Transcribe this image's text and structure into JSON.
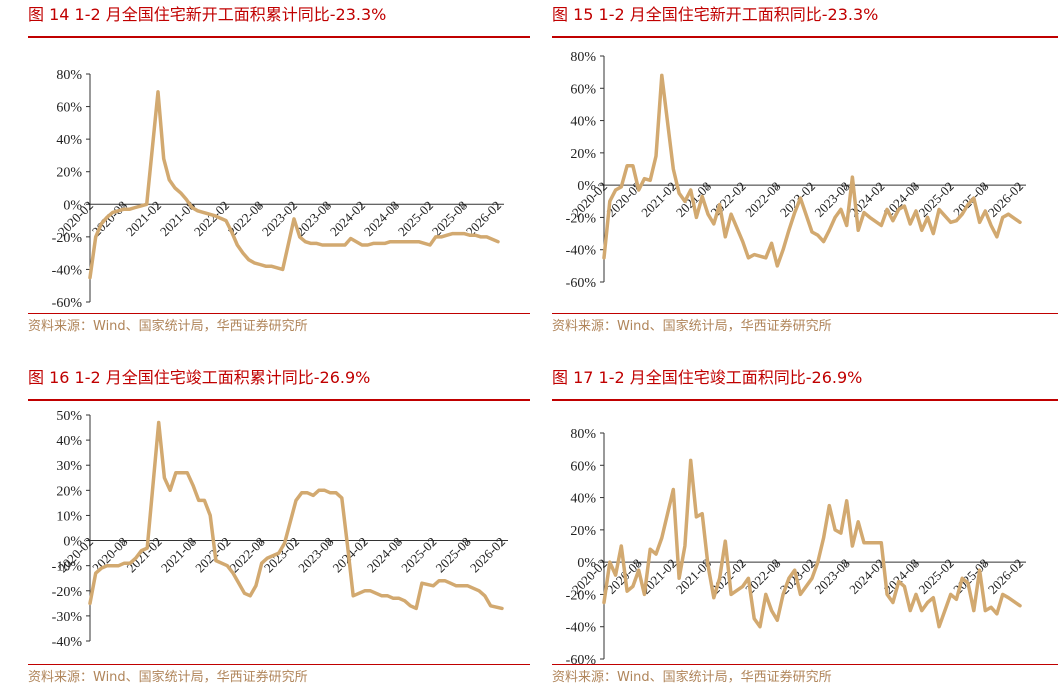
{
  "line_color": "#d2a970",
  "accent_color": "#c00000",
  "source_color": "#b0855a",
  "panels": [
    {
      "title": "图 14 1-2 月全国住宅新开工面积累计同比-23.3%",
      "source": "资料来源：Wind、国家统计局，华西证券研究所"
    },
    {
      "title": "图 15 1-2 月全国住宅新开工面积同比-23.3%",
      "source": "资料来源：Wind、国家统计局，华西证券研究所"
    },
    {
      "title": "图 16 1-2 月全国住宅竣工面积累计同比-26.9%",
      "source": "资料来源：Wind、国家统计局，华西证券研究所"
    },
    {
      "title": "图 17 1-2 月全国住宅竣工面积同比-26.9%",
      "source": "资料来源：Wind、国家统计局，华西证券研究所"
    }
  ],
  "chart_data": [
    {
      "type": "line",
      "ylim": [
        -60,
        80
      ],
      "yticks": [
        "80%",
        "60%",
        "40%",
        "20%",
        "0%",
        "-20%",
        "-40%",
        "-60%"
      ],
      "ytick_values": [
        80,
        60,
        40,
        20,
        0,
        -20,
        -40,
        -60
      ],
      "xtick_labels": [
        "2020-02",
        "2020-08",
        "2021-02",
        "2021-08",
        "2022-02",
        "2022-08",
        "2023-02",
        "2023-08",
        "2024-02",
        "2024-08",
        "2025-02",
        "2025-08",
        "2026-02"
      ],
      "x": [
        "2020-02",
        "2020-03",
        "2020-04",
        "2020-05",
        "2020-06",
        "2020-07",
        "2020-08",
        "2020-09",
        "2020-10",
        "2020-11",
        "2020-12",
        "2021-02",
        "2021-03",
        "2021-04",
        "2021-05",
        "2021-06",
        "2021-07",
        "2021-08",
        "2021-09",
        "2021-10",
        "2021-11",
        "2021-12",
        "2022-02",
        "2022-03",
        "2022-04",
        "2022-05",
        "2022-06",
        "2022-07",
        "2022-08",
        "2022-09",
        "2022-10",
        "2022-11",
        "2022-12",
        "2023-02",
        "2023-03",
        "2023-04",
        "2023-05",
        "2023-06",
        "2023-07",
        "2023-08",
        "2023-09",
        "2023-10",
        "2023-11",
        "2023-12",
        "2024-02",
        "2024-03",
        "2024-04",
        "2024-05",
        "2024-06",
        "2024-07",
        "2024-08",
        "2024-09",
        "2024-10",
        "2024-11",
        "2024-12",
        "2025-02",
        "2025-03",
        "2025-04",
        "2025-05",
        "2025-06",
        "2025-07",
        "2025-08",
        "2025-09",
        "2025-10",
        "2025-11",
        "2025-12",
        "2026-02"
      ],
      "values": [
        -45,
        -20,
        -12,
        -8,
        -5,
        -4,
        -3,
        -3,
        -2,
        -1,
        0,
        69,
        28,
        15,
        10,
        7,
        3,
        -2,
        -4,
        -5,
        -6,
        -7,
        -10,
        -17,
        -25,
        -30,
        -34,
        -36,
        -37,
        -38,
        -38,
        -39,
        -40,
        -9,
        -20,
        -23,
        -24,
        -24,
        -25,
        -25,
        -25,
        -25,
        -25,
        -21,
        -25,
        -25,
        -24,
        -24,
        -24,
        -23,
        -23,
        -23,
        -23,
        -23,
        -23,
        -25,
        -20,
        -20,
        -19,
        -18,
        -18,
        -18,
        -19,
        -19,
        -20,
        -20,
        -23
      ]
    },
    {
      "type": "line",
      "ylim": [
        -60,
        80
      ],
      "yticks": [
        "80%",
        "60%",
        "40%",
        "20%",
        "0%",
        "-20%",
        "-40%",
        "-60%"
      ],
      "ytick_values": [
        80,
        60,
        40,
        20,
        0,
        -20,
        -40,
        -60
      ],
      "xtick_labels": [
        "2020-02",
        "2020-08",
        "2021-02",
        "2021-08",
        "2022-02",
        "2022-08",
        "2023-02",
        "2023-08",
        "2024-02",
        "2024-08",
        "2025-02",
        "2025-08",
        "2026-02"
      ],
      "x": [
        "2020-02",
        "2020-03",
        "2020-04",
        "2020-05",
        "2020-06",
        "2020-07",
        "2020-08",
        "2020-09",
        "2020-10",
        "2020-11",
        "2020-12",
        "2021-02",
        "2021-03",
        "2021-04",
        "2021-05",
        "2021-06",
        "2021-07",
        "2021-08",
        "2021-09",
        "2021-10",
        "2021-11",
        "2021-12",
        "2022-02",
        "2022-03",
        "2022-04",
        "2022-05",
        "2022-06",
        "2022-07",
        "2022-08",
        "2022-09",
        "2022-10",
        "2022-11",
        "2022-12",
        "2023-02",
        "2023-03",
        "2023-04",
        "2023-05",
        "2023-06",
        "2023-07",
        "2023-08",
        "2023-09",
        "2023-10",
        "2023-11",
        "2023-12",
        "2024-02",
        "2024-03",
        "2024-04",
        "2024-05",
        "2024-06",
        "2024-07",
        "2024-08",
        "2024-09",
        "2024-10",
        "2024-11",
        "2024-12",
        "2025-02",
        "2025-03",
        "2025-04",
        "2025-05",
        "2025-06",
        "2025-07",
        "2025-08",
        "2025-09",
        "2025-10",
        "2025-11",
        "2025-12",
        "2026-02"
      ],
      "values": [
        -45,
        -10,
        -3,
        -1,
        12,
        12,
        -3,
        4,
        3,
        18,
        68,
        10,
        -5,
        -10,
        -3,
        -20,
        -7,
        -18,
        -24,
        -12,
        -32,
        -18,
        -35,
        -45,
        -43,
        -44,
        -45,
        -36,
        -50,
        -40,
        -28,
        -17,
        -8,
        -29,
        -31,
        -35,
        -28,
        -20,
        -15,
        -25,
        5,
        -28,
        -17,
        -20,
        -25,
        -15,
        -22,
        -15,
        -13,
        -24,
        -16,
        -28,
        -20,
        -30,
        -15,
        -23,
        -22,
        -18,
        -12,
        -8,
        -23,
        -16,
        -25,
        -32,
        -20,
        -18,
        -23
      ]
    },
    {
      "type": "line",
      "ylim": [
        -40,
        50
      ],
      "yticks": [
        "50%",
        "40%",
        "30%",
        "20%",
        "10%",
        "0%",
        "-10%",
        "-20%",
        "-30%",
        "-40%"
      ],
      "ytick_values": [
        50,
        40,
        30,
        20,
        10,
        0,
        -10,
        -20,
        -30,
        -40
      ],
      "xtick_labels": [
        "2020-02",
        "2020-08",
        "2021-02",
        "2021-08",
        "2022-02",
        "2022-08",
        "2023-02",
        "2023-08",
        "2024-02",
        "2024-08",
        "2025-02",
        "2025-08",
        "2026-02"
      ],
      "x": [
        "2020-02",
        "2020-03",
        "2020-04",
        "2020-05",
        "2020-06",
        "2020-07",
        "2020-08",
        "2020-09",
        "2020-10",
        "2020-11",
        "2020-12",
        "2021-02",
        "2021-03",
        "2021-04",
        "2021-05",
        "2021-06",
        "2021-07",
        "2021-08",
        "2021-09",
        "2021-10",
        "2021-11",
        "2021-12",
        "2022-02",
        "2022-03",
        "2022-04",
        "2022-05",
        "2022-06",
        "2022-07",
        "2022-08",
        "2022-09",
        "2022-10",
        "2022-11",
        "2022-12",
        "2023-02",
        "2023-03",
        "2023-04",
        "2023-05",
        "2023-06",
        "2023-07",
        "2023-08",
        "2023-09",
        "2023-10",
        "2023-11",
        "2023-12",
        "2024-02",
        "2024-03",
        "2024-04",
        "2024-05",
        "2024-06",
        "2024-07",
        "2024-08",
        "2024-09",
        "2024-10",
        "2024-11",
        "2024-12",
        "2025-02",
        "2025-03",
        "2025-04",
        "2025-05",
        "2025-06",
        "2025-07",
        "2025-08",
        "2025-09",
        "2025-10",
        "2025-11",
        "2025-12",
        "2026-02"
      ],
      "values": [
        -25,
        -13,
        -11,
        -10,
        -10,
        -10,
        -9,
        -9,
        -7,
        -4,
        -3,
        47,
        25,
        20,
        27,
        27,
        27,
        22,
        16,
        16,
        10,
        -8,
        -10,
        -13,
        -17,
        -21,
        -22,
        -18,
        -9,
        -7,
        -6,
        -5,
        -1,
        16,
        19,
        19,
        18,
        20,
        20,
        19,
        19,
        17,
        -2,
        -22,
        -20,
        -20,
        -21,
        -22,
        -22,
        -23,
        -23,
        -24,
        -26,
        -27,
        -17,
        -18,
        -16,
        -16,
        -17,
        -18,
        -18,
        -18,
        -19,
        -20,
        -22,
        -26,
        -27
      ]
    },
    {
      "type": "line",
      "ylim": [
        -60,
        80
      ],
      "yticks": [
        "80%",
        "60%",
        "40%",
        "20%",
        "0%",
        "-20%",
        "-40%",
        "-60%"
      ],
      "ytick_values": [
        80,
        60,
        40,
        20,
        0,
        -20,
        -40,
        -60
      ],
      "xtick_labels": [
        "2020-02",
        "2020-08",
        "2021-02",
        "2021-08",
        "2022-02",
        "2022-08",
        "2023-02",
        "2023-08",
        "2024-02",
        "2024-08",
        "2025-02",
        "2025-08",
        "2026-02"
      ],
      "x": [
        "2020-02",
        "2020-03",
        "2020-04",
        "2020-05",
        "2020-06",
        "2020-07",
        "2020-08",
        "2020-09",
        "2020-10",
        "2020-11",
        "2020-12",
        "2021-02",
        "2021-03",
        "2021-04",
        "2021-05",
        "2021-06",
        "2021-07",
        "2021-08",
        "2021-09",
        "2021-10",
        "2021-11",
        "2021-12",
        "2022-02",
        "2022-03",
        "2022-04",
        "2022-05",
        "2022-06",
        "2022-07",
        "2022-08",
        "2022-09",
        "2022-10",
        "2022-11",
        "2022-12",
        "2023-02",
        "2023-03",
        "2023-04",
        "2023-05",
        "2023-06",
        "2023-07",
        "2023-08",
        "2023-09",
        "2023-10",
        "2023-11",
        "2023-12",
        "2024-02",
        "2024-03",
        "2024-04",
        "2024-05",
        "2024-06",
        "2024-07",
        "2024-08",
        "2024-09",
        "2024-10",
        "2024-11",
        "2024-12",
        "2025-02",
        "2025-03",
        "2025-04",
        "2025-05",
        "2025-06",
        "2025-07",
        "2025-08",
        "2025-09",
        "2025-10",
        "2025-11",
        "2025-12",
        "2026-02"
      ],
      "values": [
        -25,
        0,
        -8,
        10,
        -18,
        -15,
        -5,
        -20,
        8,
        5,
        15,
        45,
        -10,
        10,
        63,
        28,
        30,
        -2,
        -22,
        -10,
        13,
        -20,
        -15,
        -10,
        -35,
        -40,
        -20,
        -30,
        -36,
        -20,
        -10,
        -5,
        -20,
        -10,
        0,
        15,
        35,
        20,
        18,
        38,
        10,
        25,
        12,
        12,
        12,
        -20,
        -25,
        -12,
        -15,
        -30,
        -20,
        -30,
        -25,
        -22,
        -40,
        -20,
        -23,
        -10,
        -13,
        -30,
        -5,
        -30,
        -28,
        -32,
        -20,
        -22,
        -27
      ]
    }
  ]
}
